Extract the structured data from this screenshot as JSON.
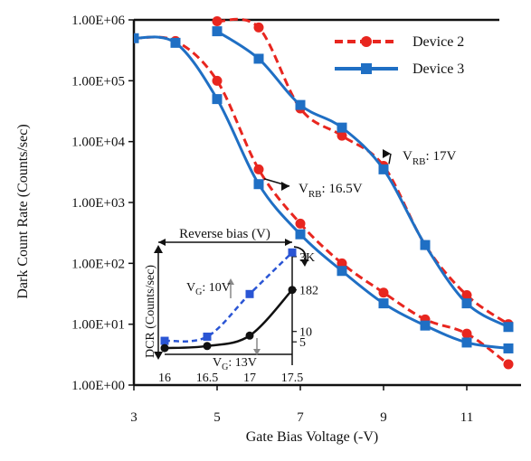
{
  "chart_data": [
    {
      "type": "line",
      "xlabel": "Gate Bias Voltage (-V)",
      "ylabel": "Dark Count Rate (Counts/sec)",
      "x_scale": "linear",
      "y_scale": "log",
      "xlim": [
        3,
        12
      ],
      "ylim": [
        1,
        1000000
      ],
      "x_ticks": [
        "3",
        "5",
        "7",
        "9",
        "11"
      ],
      "x_tick_values": [
        3,
        5,
        7,
        9,
        11
      ],
      "y_ticks": [
        "1.00E+00",
        "1.00E+01",
        "1.00E+02",
        "1.00E+03",
        "1.00E+04",
        "1.00E+05",
        "1.00E+06"
      ],
      "y_tick_values": [
        1,
        10,
        100,
        1000,
        10000,
        100000,
        1000000
      ],
      "legend_position": "top-right",
      "series": [
        {
          "name": "Device 2",
          "color": "#e8261f",
          "line_style": "dashed",
          "marker": "circle",
          "x": [
            3,
            4,
            5,
            6,
            7,
            8,
            9,
            10,
            11,
            12
          ],
          "y": [
            500000,
            450000,
            100000,
            3500,
            450,
            100,
            33,
            12,
            7,
            2.2
          ]
        },
        {
          "name": "Device 2",
          "color": "#e8261f",
          "line_style": "dashed",
          "marker": "circle",
          "x": [
            5,
            6,
            7,
            8,
            9,
            10,
            11,
            12
          ],
          "y": [
            950000,
            750000,
            35000,
            12500,
            4000,
            200,
            30,
            10
          ]
        },
        {
          "name": "Device 3",
          "color": "#1f6fc4",
          "line_style": "solid",
          "marker": "square",
          "x": [
            3,
            4,
            5,
            6,
            7,
            8,
            9,
            10,
            11,
            12
          ],
          "y": [
            500000,
            420000,
            50000,
            2000,
            300,
            75,
            22,
            9.5,
            5,
            4
          ]
        },
        {
          "name": "Device 3",
          "color": "#1f6fc4",
          "line_style": "solid",
          "marker": "square",
          "x": [
            5,
            6,
            7,
            8,
            9,
            10,
            11,
            12
          ],
          "y": [
            650000,
            230000,
            40000,
            17000,
            3500,
            200,
            22,
            9
          ]
        }
      ],
      "annotations": [
        {
          "text_main": "V",
          "text_sub": "RB",
          "text_rest": ": 17V",
          "points_to_x": 9,
          "points_to_y": 3500
        },
        {
          "text_main": "V",
          "text_sub": "RB",
          "text_rest": ": 16.5V",
          "points_to_x": 6,
          "points_to_y": 2000
        }
      ]
    },
    {
      "type": "line",
      "title": "Reverse bias (V)",
      "ylabel": "DCR (Counts/sec)",
      "x_ticks": [
        "16",
        "16.5",
        "17",
        "17.5"
      ],
      "x_tick_values": [
        16,
        16.5,
        17,
        17.5
      ],
      "xlim": [
        16,
        17.5
      ],
      "y_ticks": [
        "5",
        "10",
        "182",
        "3K"
      ],
      "series": [
        {
          "color": "#2a55d4",
          "line_style": "dashed",
          "marker": "square",
          "x": [
            16,
            16.5,
            17,
            17.5
          ],
          "y_level": [
            0.13,
            0.17,
            0.58,
            0.98
          ]
        },
        {
          "color": "#111111",
          "line_style": "solid",
          "marker": "circle",
          "x": [
            16,
            16.5,
            17,
            17.5
          ],
          "y_level": [
            0.06,
            0.08,
            0.18,
            0.62
          ]
        }
      ],
      "annotations": [
        {
          "text_main": "V",
          "text_sub": "G",
          "text_rest": ": 10V"
        },
        {
          "text_main": "V",
          "text_sub": "G",
          "text_rest": ": 13V"
        }
      ]
    }
  ]
}
